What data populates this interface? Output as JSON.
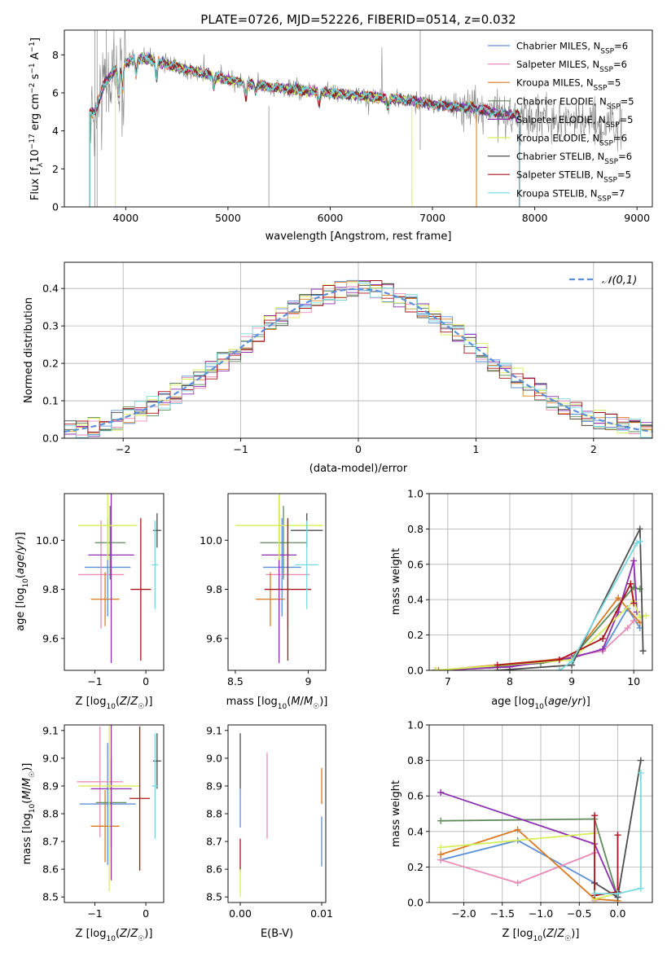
{
  "colors": {
    "Chabrier MILES": "#5b8fd9",
    "Salpeter MILES": "#e88bb8",
    "Kroupa MILES": "#d97a22",
    "Chabrier ELODIE": "#5f8a5a",
    "Salpeter ELODIE": "#8e2fb0",
    "Kroupa ELODIE": "#d7ee58",
    "Chabrier STELIB": "#4d4d4d",
    "Salpeter STELIB": "#a8141a",
    "Kroupa STELIB": "#79d9df"
  },
  "chart_data": [
    {
      "id": "spectrum",
      "type": "line",
      "title": "PLATE=0726, MJD=52226, FIBERID=0514, z=0.032",
      "xlabel": "wavelength [Angstrom, rest frame]",
      "ylabel": "Flux [fλ10⁻¹⁷ erg cm⁻² s⁻¹ A⁻¹]",
      "xlim": [
        3400,
        9150
      ],
      "ylim": [
        0,
        9.3
      ],
      "xticks": [
        4000,
        5000,
        6000,
        7000,
        8000,
        9000
      ],
      "yticks": [
        0,
        2,
        4,
        6,
        8
      ],
      "legend_position": "top-right",
      "legend": [
        {
          "name": "Chabrier MILES",
          "label": "Chabrier MILES, N_SSP=6"
        },
        {
          "name": "Salpeter MILES",
          "label": "Salpeter MILES, N_SSP=6"
        },
        {
          "name": "Kroupa MILES",
          "label": "Kroupa MILES, N_SSP=5"
        },
        {
          "name": "Chabrier ELODIE",
          "label": "Chabrier ELODIE, N_SSP=5"
        },
        {
          "name": "Salpeter ELODIE",
          "label": "Salpeter ELODIE, N_SSP=5"
        },
        {
          "name": "Kroupa ELODIE",
          "label": "Kroupa ELODIE, N_SSP=6"
        },
        {
          "name": "Chabrier STELIB",
          "label": "Chabrier STELIB, N_SSP=6"
        },
        {
          "name": "Salpeter STELIB",
          "label": "Salpeter STELIB, N_SSP=5"
        },
        {
          "name": "Kroupa STELIB",
          "label": "Kroupa STELIB, N_SSP=7"
        }
      ],
      "data_continuum": {
        "x": [
          3700,
          3800,
          3900,
          4000,
          4100,
          4200,
          4400,
          4600,
          4800,
          5000,
          5200,
          5400,
          5600,
          5800,
          6000,
          6200,
          6400,
          6600,
          6800,
          7000,
          7200,
          7400,
          7600,
          7800,
          8000,
          8200,
          8400,
          8600,
          8800
        ],
        "y": [
          5.0,
          6.6,
          7.2,
          7.6,
          7.8,
          7.8,
          7.5,
          7.2,
          7.0,
          6.7,
          6.5,
          6.3,
          6.2,
          6.1,
          6.0,
          5.9,
          5.8,
          5.7,
          5.6,
          5.4,
          5.3,
          5.2,
          5.0,
          4.8,
          4.7,
          4.6,
          4.5,
          4.4,
          4.3
        ]
      },
      "model_ranges": {
        "Kroupa MILES": [
          3650,
          7430
        ],
        "Kroupa ELODIE": [
          3900,
          6800
        ],
        "Kroupa STELIB": [
          3650,
          7850
        ],
        "Salpeter STELIB": [
          3650,
          7850
        ]
      }
    },
    {
      "id": "residuals",
      "type": "histogram",
      "xlabel": "(data-model)/error",
      "ylabel": "Normed distribution",
      "xlim": [
        -2.5,
        2.5
      ],
      "ylim": [
        0,
        0.47
      ],
      "xticks": [
        -2,
        -1,
        0,
        1,
        2
      ],
      "yticks": [
        0.0,
        0.1,
        0.2,
        0.3,
        0.4
      ],
      "grid": true,
      "reference_curve": {
        "label": "𝒩(0,1)",
        "mean": 0,
        "sigma": 1,
        "color": "#5b8fd9"
      },
      "bin_width": 0.1
    },
    {
      "id": "age-Z",
      "type": "errorbar",
      "xlabel": "Z [log₁₀(Z/Z☉)]",
      "ylabel": "age  [log₁₀(age/yr)]",
      "xlim": [
        -1.6,
        0.35
      ],
      "ylim": [
        9.47,
        10.19
      ],
      "xticks": [
        -1,
        0
      ],
      "yticks": [
        9.6,
        9.8,
        10.0
      ],
      "points": [
        {
          "name": "Chabrier MILES",
          "x": -0.75,
          "xerr": 0.45,
          "y": 9.89,
          "yerr": 0.2
        },
        {
          "name": "Salpeter MILES",
          "x": -0.88,
          "xerr": 0.45,
          "y": 9.86,
          "yerr": 0.22
        },
        {
          "name": "Kroupa MILES",
          "x": -0.8,
          "xerr": 0.28,
          "y": 9.76,
          "yerr": 0.11
        },
        {
          "name": "Chabrier ELODIE",
          "x": -0.7,
          "xerr": 0.3,
          "y": 9.99,
          "yerr": 0.15
        },
        {
          "name": "Salpeter ELODIE",
          "x": -0.68,
          "xerr": 0.45,
          "y": 9.94,
          "yerr": 0.44
        },
        {
          "name": "Kroupa ELODIE",
          "x": -0.75,
          "xerr": 0.58,
          "y": 10.06,
          "yerr": 0.14
        },
        {
          "name": "Chabrier STELIB",
          "x": 0.22,
          "xerr": 0.08,
          "y": 10.04,
          "yerr": 0.07
        },
        {
          "name": "Salpeter STELIB",
          "x": -0.1,
          "xerr": 0.2,
          "y": 9.8,
          "yerr": 0.29
        },
        {
          "name": "Kroupa STELIB",
          "x": 0.18,
          "xerr": 0.06,
          "y": 9.9,
          "yerr": 0.18
        }
      ]
    },
    {
      "id": "age-mass",
      "type": "errorbar",
      "xlabel": "mass [log₁₀(M/M☉)]",
      "xlim": [
        8.45,
        9.12
      ],
      "ylim": [
        9.47,
        10.19
      ],
      "xticks": [
        8.5,
        9.0
      ],
      "yticks": [
        9.6,
        9.8,
        10.0
      ],
      "points": [
        {
          "name": "Chabrier MILES",
          "x": 8.82,
          "xerr": 0.13,
          "y": 9.89,
          "yerr": 0.2
        },
        {
          "name": "Salpeter MILES",
          "x": 8.86,
          "xerr": 0.15,
          "y": 9.86,
          "yerr": 0.22
        },
        {
          "name": "Kroupa MILES",
          "x": 8.74,
          "xerr": 0.1,
          "y": 9.76,
          "yerr": 0.11
        },
        {
          "name": "Chabrier ELODIE",
          "x": 8.83,
          "xerr": 0.16,
          "y": 9.99,
          "yerr": 0.15
        },
        {
          "name": "Salpeter ELODIE",
          "x": 8.8,
          "xerr": 0.12,
          "y": 9.94,
          "yerr": 0.44
        },
        {
          "name": "Kroupa ELODIE",
          "x": 8.8,
          "xerr": 0.3,
          "y": 10.06,
          "yerr": 0.14
        },
        {
          "name": "Chabrier STELIB",
          "x": 8.99,
          "xerr": 0.11,
          "y": 10.04,
          "yerr": 0.07
        },
        {
          "name": "Salpeter STELIB",
          "x": 8.86,
          "xerr": 0.16,
          "y": 9.8,
          "yerr": 0.29
        },
        {
          "name": "Kroupa STELIB",
          "x": 8.99,
          "xerr": 0.08,
          "y": 9.9,
          "yerr": 0.18
        }
      ]
    },
    {
      "id": "weight-age",
      "type": "line",
      "xlabel": "age  [log₁₀(age/yr)]",
      "ylabel": "mass weight",
      "xlim": [
        6.7,
        10.3
      ],
      "ylim": [
        0,
        1.0
      ],
      "xticks": [
        7,
        8,
        9,
        10
      ],
      "yticks": [
        0.0,
        0.2,
        0.4,
        0.6,
        0.8,
        1.0
      ],
      "series": [
        {
          "name": "Chabrier MILES",
          "x": [
            6.8,
            8.0,
            9.0,
            9.5,
            9.9,
            10.1
          ],
          "y": [
            0.0,
            0.02,
            0.08,
            0.11,
            0.35,
            0.24
          ]
        },
        {
          "name": "Salpeter MILES",
          "x": [
            6.8,
            8.0,
            9.0,
            9.5,
            9.9,
            10.0
          ],
          "y": [
            0.0,
            0.02,
            0.08,
            0.11,
            0.24,
            0.28
          ]
        },
        {
          "name": "Kroupa MILES",
          "x": [
            6.85,
            9.0,
            9.75,
            10.1
          ],
          "y": [
            0.0,
            0.07,
            0.41,
            0.27
          ]
        },
        {
          "name": "Chabrier ELODIE",
          "x": [
            6.8,
            8.5,
            9.0,
            10.0,
            10.1
          ],
          "y": [
            0.0,
            0.04,
            0.07,
            0.47,
            0.46
          ]
        },
        {
          "name": "Salpeter ELODIE",
          "x": [
            6.8,
            8.0,
            9.0,
            9.5,
            9.75,
            10.0,
            10.05
          ],
          "y": [
            0.0,
            0.02,
            0.07,
            0.12,
            0.33,
            0.62,
            0.33
          ]
        },
        {
          "name": "Kroupa ELODIE",
          "x": [
            6.8,
            9.0,
            10.0,
            10.1,
            10.2
          ],
          "y": [
            0.0,
            0.06,
            0.39,
            0.3,
            0.31
          ]
        },
        {
          "name": "Chabrier STELIB",
          "x": [
            7.8,
            9.0,
            10.1,
            10.15
          ],
          "y": [
            0.0,
            0.03,
            0.8,
            0.11
          ]
        },
        {
          "name": "Salpeter STELIB",
          "x": [
            7.8,
            8.8,
            9.5,
            9.95,
            10.0
          ],
          "y": [
            0.03,
            0.06,
            0.18,
            0.49,
            0.38
          ]
        },
        {
          "name": "Kroupa STELIB",
          "x": [
            8.8,
            9.0,
            10.05,
            10.1
          ],
          "y": [
            0.0,
            0.05,
            0.72,
            0.73
          ]
        }
      ]
    },
    {
      "id": "mass-Z",
      "type": "errorbar",
      "xlabel": "Z [log₁₀(Z/Z☉)]",
      "ylabel": "mass [log₁₀(M/M☉)]",
      "xlim": [
        -1.6,
        0.35
      ],
      "ylim": [
        8.48,
        9.12
      ],
      "xticks": [
        -1,
        0
      ],
      "yticks": [
        8.5,
        8.6,
        8.7,
        8.8,
        8.9,
        9.0,
        9.1
      ],
      "points": [
        {
          "name": "Chabrier MILES",
          "x": -0.75,
          "xerr": 0.55,
          "y": 8.835,
          "yerr": 0.22
        },
        {
          "name": "Salpeter MILES",
          "x": -0.9,
          "xerr": 0.45,
          "y": 8.915,
          "yerr": 0.2
        },
        {
          "name": "Kroupa MILES",
          "x": -0.8,
          "xerr": 0.28,
          "y": 8.755,
          "yerr": 0.13
        },
        {
          "name": "Chabrier ELODIE",
          "x": -0.68,
          "xerr": 0.3,
          "y": 8.84,
          "yerr": 0.16
        },
        {
          "name": "Salpeter ELODIE",
          "x": -0.68,
          "xerr": 0.4,
          "y": 8.89,
          "yerr": 0.33
        },
        {
          "name": "Kroupa ELODIE",
          "x": -0.72,
          "xerr": 0.6,
          "y": 8.9,
          "yerr": 0.38
        },
        {
          "name": "Chabrier STELIB",
          "x": 0.22,
          "xerr": 0.08,
          "y": 8.99,
          "yerr": 0.1
        },
        {
          "name": "Salpeter STELIB",
          "x": -0.12,
          "xerr": 0.2,
          "y": 8.855,
          "yerr": 0.26
        },
        {
          "name": "Kroupa STELIB",
          "x": 0.18,
          "xerr": 0.06,
          "y": 8.9,
          "yerr": 0.19
        }
      ]
    },
    {
      "id": "mass-ebv",
      "type": "errorbar",
      "xlabel": "E(B-V)",
      "xlim": [
        -0.0015,
        0.0105
      ],
      "ylim": [
        8.48,
        9.12
      ],
      "xticks": [
        0.0,
        0.01
      ],
      "xtick_labels": [
        "0.00",
        "0.01"
      ],
      "yticks": [
        8.5,
        8.6,
        8.7,
        8.8,
        8.9,
        9.0,
        9.1
      ],
      "points": [
        {
          "name": "Chabrier STELIB",
          "x": 0.0,
          "y": 8.99,
          "yerr": 0.1
        },
        {
          "name": "Salpeter STELIB",
          "x": 0.0,
          "y": 8.65,
          "yerr": 0.06
        },
        {
          "name": "Kroupa ELODIE",
          "x": 0.0,
          "y": 8.55,
          "yerr": 0.05
        },
        {
          "name": "Chabrier MILES",
          "x": 0.0,
          "y": 8.82,
          "yerr": 0.07
        },
        {
          "name": "Salpeter MILES",
          "x": 0.0033,
          "y": 8.865,
          "yerr": 0.155
        },
        {
          "name": "Kroupa MILES",
          "x": 0.01,
          "y": 8.9,
          "yerr": 0.065
        },
        {
          "name": "Chabrier MILES",
          "x": 0.01,
          "y": 8.7,
          "yerr": 0.09
        }
      ]
    },
    {
      "id": "weight-Z",
      "type": "line",
      "xlabel": "Z [log₁₀(Z/Z☉)]",
      "ylabel": "mass weight",
      "xlim": [
        -2.45,
        0.45
      ],
      "ylim": [
        0,
        1.0
      ],
      "xticks": [
        -2.0,
        -1.5,
        -1.0,
        -0.5,
        0.0
      ],
      "xtick_labels": [
        "−2.0",
        "−1.5",
        "−1.0",
        "−0.5",
        "0.0"
      ],
      "yticks": [
        0.0,
        0.2,
        0.4,
        0.6,
        0.8,
        1.0
      ],
      "series": [
        {
          "name": "Chabrier MILES",
          "x": [
            -2.3,
            -1.3,
            -0.3,
            -0.3
          ],
          "y": [
            0.24,
            0.35,
            0.11,
            0.02
          ]
        },
        {
          "name": "Salpeter MILES",
          "x": [
            -2.3,
            -1.3,
            -0.3,
            -0.3
          ],
          "y": [
            0.24,
            0.11,
            0.28,
            0.01
          ]
        },
        {
          "name": "Kroupa MILES",
          "x": [
            -2.3,
            -1.3,
            -0.3,
            0.0
          ],
          "y": [
            0.27,
            0.41,
            0.02,
            0.01
          ]
        },
        {
          "name": "Chabrier ELODIE",
          "x": [
            -2.3,
            -0.3,
            0.0
          ],
          "y": [
            0.46,
            0.47,
            0.03
          ]
        },
        {
          "name": "Salpeter ELODIE",
          "x": [
            -2.3,
            -0.3,
            0.0
          ],
          "y": [
            0.62,
            0.33,
            0.03
          ]
        },
        {
          "name": "Kroupa ELODIE",
          "x": [
            -2.3,
            -0.3,
            -0.3,
            0.0
          ],
          "y": [
            0.31,
            0.39,
            0.02,
            0.05
          ]
        },
        {
          "name": "Chabrier STELIB",
          "x": [
            -0.3,
            0.0,
            0.3
          ],
          "y": [
            0.11,
            0.03,
            0.8
          ]
        },
        {
          "name": "Salpeter STELIB",
          "x": [
            -0.3,
            -0.3,
            0.0,
            0.0
          ],
          "y": [
            0.49,
            0.04,
            0.06,
            0.38
          ]
        },
        {
          "name": "Kroupa STELIB",
          "x": [
            -0.3,
            0.0,
            0.3,
            0.3
          ],
          "y": [
            0.05,
            0.05,
            0.08,
            0.73
          ]
        }
      ]
    }
  ]
}
